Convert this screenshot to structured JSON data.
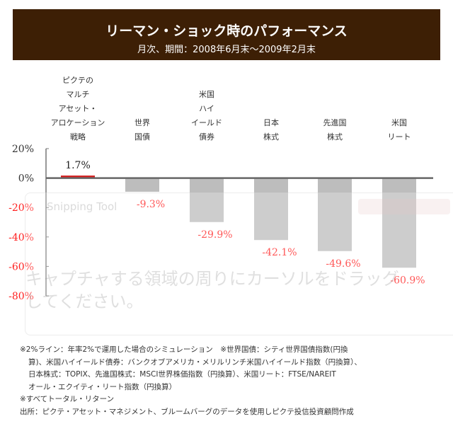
{
  "header": {
    "title": "リーマン・ショック時のパフォーマンス",
    "subtitle": "月次、期間：2008年6月末～2009年2月末"
  },
  "chart_data": {
    "type": "bar",
    "categories": [
      [
        "ピクテの",
        "マルチ",
        "アセット・",
        "アロケーション",
        "戦略"
      ],
      [
        "世界",
        "国債"
      ],
      [
        "米国",
        "ハイ",
        "イールド",
        "債券"
      ],
      [
        "日本",
        "株式"
      ],
      [
        "先進国",
        "株式"
      ],
      [
        "米国",
        "リート"
      ]
    ],
    "values": [
      1.7,
      -9.3,
      -29.9,
      -42.1,
      -49.6,
      -60.9
    ],
    "data_labels": [
      "1.7%",
      "-9.3%",
      "-29.9%",
      "-42.1%",
      "-49.6%",
      "-60.9%"
    ],
    "ylim": [
      -80,
      20
    ],
    "yticks": [
      "20%",
      "0%",
      "-20%",
      "-40%",
      "-60%",
      "-80%"
    ],
    "ytick_values": [
      20,
      0,
      -20,
      -40,
      -60,
      -80
    ],
    "colors": {
      "positive": "#d42020",
      "negative": "#bdbdbd",
      "neg_label": "#ff2020",
      "pos_label": "#222222"
    }
  },
  "overlay": {
    "title": "Snipping Tool",
    "message": "キャプチャする領域の周りにカーソルをドラッグしてください。"
  },
  "notes": [
    "※2%ライン：年率2%で運用した場合のシミュレーション　※世界国債：シティ世界国債指数(円換",
    "算)、米国ハイイールド債券：バンクオブアメリカ・メリルリンチ米国ハイイールド指数（円換算）、",
    "日本株式：TOPIX、先進国株式：MSCI世界株価指数（円換算）、米国リート：FTSE/NAREIT",
    "オール・エクイティ・リート指数（円換算）",
    "※すべてトータル・リターン",
    "出所：ピクテ・アセット・マネジメント、ブルームバーグのデータを使用しピクテ投信投資顧問作成"
  ]
}
